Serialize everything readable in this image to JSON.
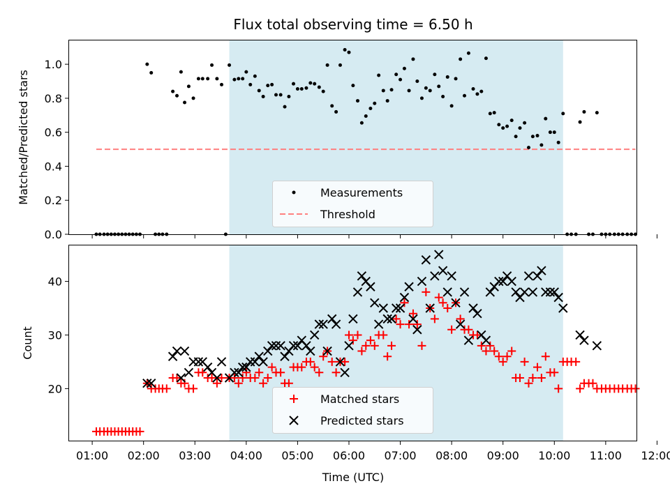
{
  "chart_data": [
    {
      "type": "scatter",
      "title": "Flux total observing time = 6.50 h",
      "xlabel": "",
      "ylabel": "Matched/Predicted stars",
      "xlim": [
        0.55,
        11.6
      ],
      "ylim": [
        0.0,
        1.14
      ],
      "yticks": [
        0.0,
        0.2,
        0.4,
        0.6,
        0.8,
        1.0
      ],
      "ytick_labels": [
        "0.0",
        "0.2",
        "0.4",
        "0.6",
        "0.8",
        "1.0"
      ],
      "shaded_span": [
        3.67,
        10.17
      ],
      "threshold": {
        "value": 0.5,
        "x_range": [
          1.08,
          11.58
        ],
        "color": "#ff7f7f"
      },
      "legend": {
        "placement": "lower center",
        "entries": [
          "Measurements",
          "Threshold"
        ]
      },
      "measurements": [
        [
          1.08,
          0
        ],
        [
          1.15,
          0
        ],
        [
          1.23,
          0
        ],
        [
          1.3,
          0
        ],
        [
          1.37,
          0
        ],
        [
          1.44,
          0
        ],
        [
          1.51,
          0
        ],
        [
          1.58,
          0
        ],
        [
          1.65,
          0
        ],
        [
          1.72,
          0
        ],
        [
          1.79,
          0
        ],
        [
          1.86,
          0
        ],
        [
          1.93,
          0
        ],
        [
          2.07,
          1.0
        ],
        [
          2.15,
          0.95
        ],
        [
          2.23,
          0
        ],
        [
          2.3,
          0
        ],
        [
          2.37,
          0
        ],
        [
          2.45,
          0
        ],
        [
          2.57,
          0.84
        ],
        [
          2.65,
          0.815
        ],
        [
          2.73,
          0.955
        ],
        [
          2.8,
          0.775
        ],
        [
          2.88,
          0.87
        ],
        [
          2.97,
          0.8
        ],
        [
          3.07,
          0.915
        ],
        [
          3.15,
          0.915
        ],
        [
          3.25,
          0.915
        ],
        [
          3.33,
          0.995
        ],
        [
          3.43,
          0.915
        ],
        [
          3.52,
          0.88
        ],
        [
          3.6,
          0
        ],
        [
          3.67,
          0.995
        ],
        [
          3.77,
          0.91
        ],
        [
          3.85,
          0.915
        ],
        [
          3.93,
          0.915
        ],
        [
          4.0,
          0.955
        ],
        [
          4.08,
          0.88
        ],
        [
          4.17,
          0.93
        ],
        [
          4.25,
          0.845
        ],
        [
          4.33,
          0.81
        ],
        [
          4.42,
          0.875
        ],
        [
          4.5,
          0.88
        ],
        [
          4.58,
          0.82
        ],
        [
          4.67,
          0.82
        ],
        [
          4.75,
          0.75
        ],
        [
          4.83,
          0.81
        ],
        [
          4.92,
          0.885
        ],
        [
          5.0,
          0.855
        ],
        [
          5.08,
          0.855
        ],
        [
          5.17,
          0.86
        ],
        [
          5.25,
          0.89
        ],
        [
          5.33,
          0.885
        ],
        [
          5.42,
          0.865
        ],
        [
          5.5,
          0.84
        ],
        [
          5.58,
          0.995
        ],
        [
          5.67,
          0.755
        ],
        [
          5.75,
          0.72
        ],
        [
          5.83,
          0.995
        ],
        [
          5.92,
          1.085
        ],
        [
          6.0,
          1.07
        ],
        [
          6.08,
          0.875
        ],
        [
          6.17,
          0.785
        ],
        [
          6.25,
          0.655
        ],
        [
          6.33,
          0.695
        ],
        [
          6.42,
          0.74
        ],
        [
          6.5,
          0.77
        ],
        [
          6.58,
          0.935
        ],
        [
          6.67,
          0.845
        ],
        [
          6.75,
          0.785
        ],
        [
          6.83,
          0.85
        ],
        [
          6.92,
          0.94
        ],
        [
          7.0,
          0.91
        ],
        [
          7.08,
          0.975
        ],
        [
          7.17,
          0.845
        ],
        [
          7.25,
          1.03
        ],
        [
          7.33,
          0.9
        ],
        [
          7.42,
          0.8
        ],
        [
          7.5,
          0.86
        ],
        [
          7.58,
          0.845
        ],
        [
          7.67,
          0.94
        ],
        [
          7.75,
          0.87
        ],
        [
          7.83,
          0.81
        ],
        [
          7.92,
          0.925
        ],
        [
          8.0,
          0.755
        ],
        [
          8.08,
          0.915
        ],
        [
          8.17,
          1.03
        ],
        [
          8.25,
          0.815
        ],
        [
          8.33,
          1.065
        ],
        [
          8.42,
          0.855
        ],
        [
          8.5,
          0.825
        ],
        [
          8.58,
          0.84
        ],
        [
          8.67,
          1.035
        ],
        [
          8.75,
          0.71
        ],
        [
          8.83,
          0.715
        ],
        [
          8.92,
          0.645
        ],
        [
          9.0,
          0.625
        ],
        [
          9.08,
          0.635
        ],
        [
          9.17,
          0.67
        ],
        [
          9.25,
          0.575
        ],
        [
          9.33,
          0.625
        ],
        [
          9.42,
          0.655
        ],
        [
          9.5,
          0.51
        ],
        [
          9.58,
          0.575
        ],
        [
          9.67,
          0.58
        ],
        [
          9.75,
          0.525
        ],
        [
          9.83,
          0.68
        ],
        [
          9.92,
          0.6
        ],
        [
          10.0,
          0.6
        ],
        [
          10.08,
          0.54
        ],
        [
          10.17,
          0.71
        ],
        [
          10.25,
          0
        ],
        [
          10.33,
          0
        ],
        [
          10.42,
          0
        ],
        [
          10.5,
          0.66
        ],
        [
          10.58,
          0.72
        ],
        [
          10.67,
          0
        ],
        [
          10.75,
          0
        ],
        [
          10.83,
          0.715
        ],
        [
          10.92,
          0
        ],
        [
          11.0,
          0
        ],
        [
          11.08,
          0
        ],
        [
          11.17,
          0
        ],
        [
          11.25,
          0
        ],
        [
          11.33,
          0
        ],
        [
          11.42,
          0
        ],
        [
          11.5,
          0
        ],
        [
          11.58,
          0
        ]
      ]
    },
    {
      "type": "scatter",
      "title": "",
      "xlabel": "Time (UTC)",
      "ylabel": "Count",
      "xlim": [
        0.55,
        11.6
      ],
      "ylim": [
        10.3,
        46.7
      ],
      "yticks": [
        20,
        30,
        40
      ],
      "ytick_labels": [
        "20",
        "30",
        "40"
      ],
      "xticks": [
        1,
        2,
        3,
        4,
        5,
        6,
        7,
        8,
        9,
        10,
        11,
        12
      ],
      "xtick_labels": [
        "01:00",
        "02:00",
        "03:00",
        "04:00",
        "05:00",
        "06:00",
        "07:00",
        "08:00",
        "09:00",
        "10:00",
        "11:00",
        "12:00"
      ],
      "shaded_span": [
        3.67,
        10.17
      ],
      "legend": {
        "placement": "lower center",
        "entries": [
          "Matched stars",
          "Predicted stars"
        ]
      },
      "matched": [
        [
          1.08,
          12
        ],
        [
          1.15,
          12
        ],
        [
          1.23,
          12
        ],
        [
          1.3,
          12
        ],
        [
          1.37,
          12
        ],
        [
          1.44,
          12
        ],
        [
          1.51,
          12
        ],
        [
          1.58,
          12
        ],
        [
          1.65,
          12
        ],
        [
          1.72,
          12
        ],
        [
          1.79,
          12
        ],
        [
          1.86,
          12
        ],
        [
          1.93,
          12
        ],
        [
          2.07,
          21
        ],
        [
          2.15,
          20
        ],
        [
          2.23,
          20
        ],
        [
          2.3,
          20
        ],
        [
          2.37,
          20
        ],
        [
          2.45,
          20
        ],
        [
          2.57,
          22
        ],
        [
          2.65,
          22
        ],
        [
          2.73,
          21
        ],
        [
          2.8,
          21
        ],
        [
          2.88,
          20
        ],
        [
          2.97,
          20
        ],
        [
          3.07,
          23
        ],
        [
          3.15,
          23
        ],
        [
          3.25,
          22
        ],
        [
          3.33,
          22
        ],
        [
          3.43,
          21
        ],
        [
          3.52,
          22
        ],
        [
          3.67,
          22
        ],
        [
          3.77,
          22
        ],
        [
          3.85,
          21
        ],
        [
          3.93,
          22
        ],
        [
          4.0,
          23
        ],
        [
          4.08,
          22
        ],
        [
          4.17,
          22
        ],
        [
          4.25,
          23
        ],
        [
          4.33,
          21
        ],
        [
          4.42,
          22
        ],
        [
          4.5,
          24
        ],
        [
          4.58,
          23
        ],
        [
          4.67,
          23
        ],
        [
          4.75,
          21
        ],
        [
          4.83,
          21
        ],
        [
          4.92,
          24
        ],
        [
          5.0,
          24
        ],
        [
          5.08,
          24
        ],
        [
          5.17,
          25
        ],
        [
          5.25,
          25
        ],
        [
          5.33,
          24
        ],
        [
          5.42,
          23
        ],
        [
          5.5,
          26
        ],
        [
          5.58,
          27
        ],
        [
          5.67,
          25
        ],
        [
          5.75,
          23
        ],
        [
          5.83,
          25
        ],
        [
          5.92,
          25
        ],
        [
          6.0,
          30
        ],
        [
          6.08,
          29
        ],
        [
          6.17,
          30
        ],
        [
          6.25,
          27
        ],
        [
          6.33,
          28
        ],
        [
          6.42,
          29
        ],
        [
          6.5,
          28
        ],
        [
          6.58,
          30
        ],
        [
          6.67,
          30
        ],
        [
          6.75,
          26
        ],
        [
          6.83,
          28
        ],
        [
          6.92,
          33
        ],
        [
          7.0,
          32
        ],
        [
          7.08,
          36
        ],
        [
          7.17,
          32
        ],
        [
          7.25,
          34
        ],
        [
          7.33,
          32
        ],
        [
          7.42,
          28
        ],
        [
          7.5,
          38
        ],
        [
          7.58,
          35
        ],
        [
          7.67,
          33
        ],
        [
          7.75,
          37
        ],
        [
          7.83,
          36
        ],
        [
          7.92,
          35
        ],
        [
          8.0,
          31
        ],
        [
          8.08,
          36
        ],
        [
          8.17,
          33
        ],
        [
          8.25,
          31
        ],
        [
          8.33,
          31
        ],
        [
          8.42,
          30
        ],
        [
          8.5,
          30
        ],
        [
          8.58,
          28
        ],
        [
          8.67,
          27
        ],
        [
          8.75,
          28
        ],
        [
          8.83,
          27
        ],
        [
          8.92,
          26
        ],
        [
          9.0,
          25
        ],
        [
          9.08,
          26
        ],
        [
          9.17,
          27
        ],
        [
          9.25,
          22
        ],
        [
          9.33,
          22
        ],
        [
          9.42,
          25
        ],
        [
          9.5,
          21
        ],
        [
          9.58,
          22
        ],
        [
          9.67,
          24
        ],
        [
          9.75,
          22
        ],
        [
          9.83,
          26
        ],
        [
          9.92,
          23
        ],
        [
          10.0,
          23
        ],
        [
          10.08,
          20
        ],
        [
          10.17,
          25
        ],
        [
          10.25,
          25
        ],
        [
          10.33,
          25
        ],
        [
          10.42,
          25
        ],
        [
          10.5,
          20
        ],
        [
          10.58,
          21
        ],
        [
          10.67,
          21
        ],
        [
          10.75,
          21
        ],
        [
          10.83,
          20
        ],
        [
          10.92,
          20
        ],
        [
          11.0,
          20
        ],
        [
          11.08,
          20
        ],
        [
          11.17,
          20
        ],
        [
          11.25,
          20
        ],
        [
          11.33,
          20
        ],
        [
          11.42,
          20
        ],
        [
          11.5,
          20
        ],
        [
          11.58,
          20
        ]
      ],
      "predicted": [
        [
          2.07,
          21
        ],
        [
          2.15,
          21
        ],
        [
          2.57,
          26
        ],
        [
          2.65,
          27
        ],
        [
          2.73,
          22
        ],
        [
          2.8,
          27
        ],
        [
          2.88,
          23
        ],
        [
          2.97,
          25
        ],
        [
          3.07,
          25
        ],
        [
          3.15,
          25
        ],
        [
          3.25,
          24
        ],
        [
          3.33,
          23
        ],
        [
          3.43,
          22
        ],
        [
          3.52,
          25
        ],
        [
          3.67,
          22
        ],
        [
          3.77,
          23
        ],
        [
          3.85,
          23
        ],
        [
          3.93,
          24
        ],
        [
          4.0,
          24
        ],
        [
          4.08,
          25
        ],
        [
          4.17,
          25
        ],
        [
          4.25,
          26
        ],
        [
          4.33,
          25
        ],
        [
          4.42,
          27
        ],
        [
          4.5,
          28
        ],
        [
          4.58,
          28
        ],
        [
          4.67,
          28
        ],
        [
          4.75,
          26
        ],
        [
          4.83,
          27
        ],
        [
          4.92,
          28
        ],
        [
          5.0,
          28
        ],
        [
          5.08,
          29
        ],
        [
          5.17,
          28
        ],
        [
          5.25,
          27
        ],
        [
          5.33,
          30
        ],
        [
          5.42,
          32
        ],
        [
          5.5,
          32
        ],
        [
          5.58,
          27
        ],
        [
          5.67,
          33
        ],
        [
          5.75,
          32
        ],
        [
          5.83,
          25
        ],
        [
          5.92,
          23
        ],
        [
          6.0,
          28
        ],
        [
          6.08,
          33
        ],
        [
          6.17,
          38
        ],
        [
          6.25,
          41
        ],
        [
          6.33,
          40
        ],
        [
          6.42,
          39
        ],
        [
          6.5,
          36
        ],
        [
          6.58,
          32
        ],
        [
          6.67,
          35
        ],
        [
          6.75,
          33
        ],
        [
          6.83,
          33
        ],
        [
          6.92,
          35
        ],
        [
          7.0,
          35
        ],
        [
          7.08,
          37
        ],
        [
          7.17,
          39
        ],
        [
          7.25,
          33
        ],
        [
          7.33,
          31
        ],
        [
          7.42,
          40
        ],
        [
          7.5,
          44
        ],
        [
          7.58,
          35
        ],
        [
          7.67,
          41
        ],
        [
          7.75,
          45
        ],
        [
          7.83,
          42
        ],
        [
          7.92,
          38
        ],
        [
          8.0,
          41
        ],
        [
          8.08,
          36
        ],
        [
          8.17,
          32
        ],
        [
          8.25,
          38
        ],
        [
          8.33,
          29
        ],
        [
          8.42,
          35
        ],
        [
          8.5,
          34
        ],
        [
          8.58,
          30
        ],
        [
          8.67,
          29
        ],
        [
          8.75,
          38
        ],
        [
          8.83,
          39
        ],
        [
          8.92,
          40
        ],
        [
          9.0,
          40
        ],
        [
          9.08,
          41
        ],
        [
          9.17,
          40
        ],
        [
          9.25,
          38
        ],
        [
          9.33,
          37
        ],
        [
          9.42,
          38
        ],
        [
          9.5,
          41
        ],
        [
          9.58,
          38
        ],
        [
          9.67,
          41
        ],
        [
          9.75,
          42
        ],
        [
          9.83,
          38
        ],
        [
          9.92,
          38
        ],
        [
          10.0,
          38
        ],
        [
          10.08,
          37
        ],
        [
          10.17,
          35
        ],
        [
          10.5,
          30
        ],
        [
          10.58,
          29
        ],
        [
          10.83,
          28
        ]
      ]
    }
  ]
}
